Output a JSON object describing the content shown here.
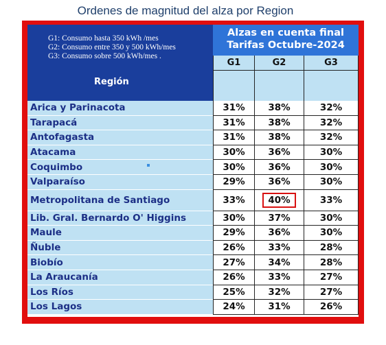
{
  "page_title": "Ordenes de magnitud del alza por Region",
  "legend": [
    "G1: Consumo hasta 350 kWh /mes",
    "G2: Consumo entre 350 y 500 kWh/mes",
    "G3: Consumo sobre 500 kWh/mes ."
  ],
  "header": {
    "region_label": "Región",
    "alzas_line1": "Alzas en cuenta final",
    "alzas_line2": "Tarifas Octubre-2024",
    "groups": [
      "G1",
      "G2",
      "G3"
    ]
  },
  "colors": {
    "frame": "#e10e0e",
    "header_dark": "#1a3e9c",
    "header_mid": "#2f74d8",
    "row_bg": "#bfe1f3",
    "region_text": "#1c2f86",
    "highlight": "#d81010"
  },
  "rows": [
    {
      "region": "Arica y Parinacota",
      "g1": "31%",
      "g2": "38%",
      "g3": "32%"
    },
    {
      "region": "Tarapacá",
      "g1": "31%",
      "g2": "38%",
      "g3": "32%"
    },
    {
      "region": "Antofagasta",
      "g1": "31%",
      "g2": "38%",
      "g3": "32%"
    },
    {
      "region": "Atacama",
      "g1": "30%",
      "g2": "36%",
      "g3": "30%"
    },
    {
      "region": "Coquimbo",
      "g1": "30%",
      "g2": "36%",
      "g3": "30%"
    },
    {
      "region": "Valparaíso",
      "g1": "29%",
      "g2": "36%",
      "g3": "30%"
    },
    {
      "region": "Metropolitana de Santiago",
      "g1": "33%",
      "g2": "40%",
      "g3": "33%",
      "highlight_g2": true
    },
    {
      "region": "Lib. Gral. Bernardo O' Higgins",
      "g1": "30%",
      "g2": "37%",
      "g3": "30%"
    },
    {
      "region": "Maule",
      "g1": "29%",
      "g2": "36%",
      "g3": "30%"
    },
    {
      "region": "Ñuble",
      "g1": "26%",
      "g2": "33%",
      "g3": "28%"
    },
    {
      "region": "Biobío",
      "g1": "27%",
      "g2": "34%",
      "g3": "28%"
    },
    {
      "region": "La Araucanía",
      "g1": "26%",
      "g2": "33%",
      "g3": "27%"
    },
    {
      "region": "Los Ríos",
      "g1": "25%",
      "g2": "32%",
      "g3": "27%"
    },
    {
      "region": "Los Lagos",
      "g1": "24%",
      "g2": "31%",
      "g3": "26%"
    }
  ]
}
